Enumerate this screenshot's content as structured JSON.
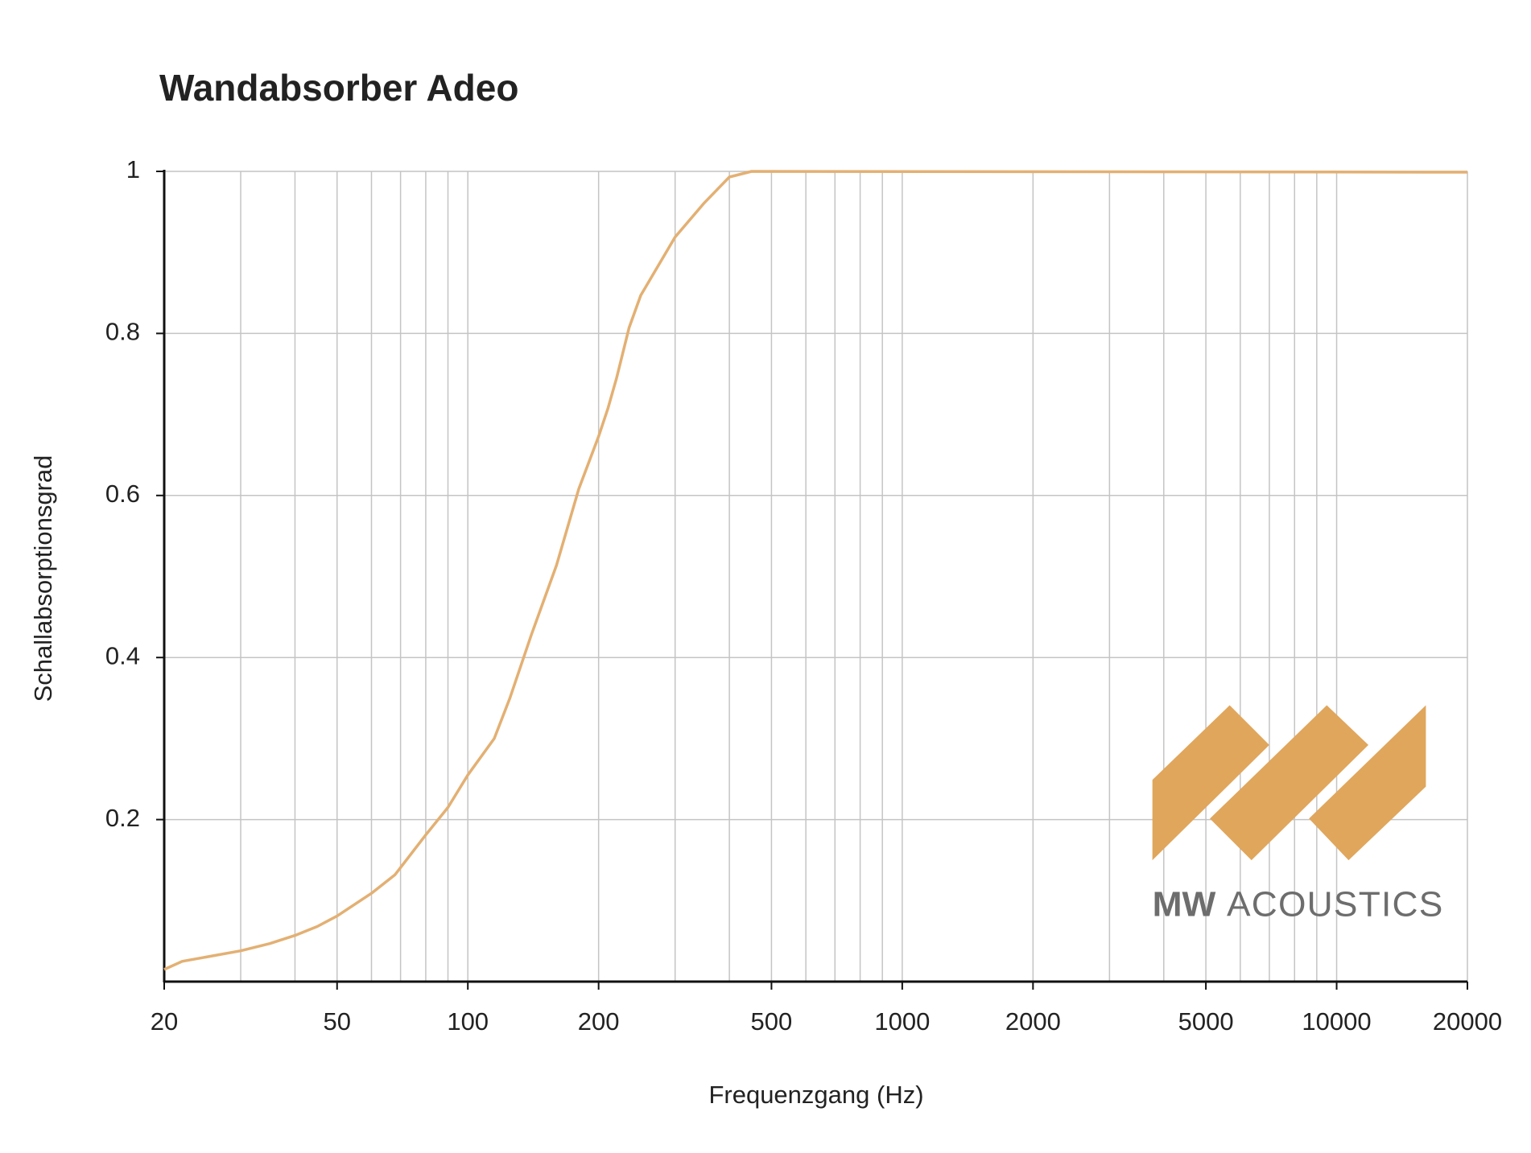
{
  "chart_data": {
    "type": "line",
    "title": "Wandabsorber Adeo",
    "x_label": "Frequenzgang (Hz)",
    "y_label": "Schallabsorptionsgrad",
    "x": [
      20,
      22,
      30,
      35,
      40,
      45,
      50,
      60,
      68,
      80,
      90,
      100,
      115,
      125,
      140,
      160,
      180,
      200,
      210,
      220,
      235,
      250,
      300,
      350,
      400,
      450,
      20000
    ],
    "values": [
      0.015,
      0.025,
      0.038,
      0.047,
      0.057,
      0.068,
      0.081,
      0.109,
      0.132,
      0.181,
      0.215,
      0.255,
      0.3,
      0.35,
      0.428,
      0.514,
      0.608,
      0.673,
      0.707,
      0.745,
      0.807,
      0.847,
      0.919,
      0.961,
      0.993,
      1.0,
      0.999
    ],
    "color": "#e3b073",
    "xlog": true,
    "xlim": [
      20,
      20000
    ],
    "xticks": [
      20,
      50,
      100,
      200,
      500,
      1000,
      2000,
      5000,
      10000,
      20000
    ],
    "xminorticks": [
      30,
      40,
      60,
      70,
      80,
      90,
      300,
      400,
      600,
      700,
      800,
      900,
      3000,
      4000,
      6000,
      7000,
      8000,
      9000
    ],
    "ylim": [
      0,
      1
    ],
    "yticks": [
      0.2,
      0.4,
      0.6,
      0.8,
      1
    ],
    "grid": true
  },
  "logo": {
    "brand": "MW",
    "name": "ACOUSTICS"
  }
}
